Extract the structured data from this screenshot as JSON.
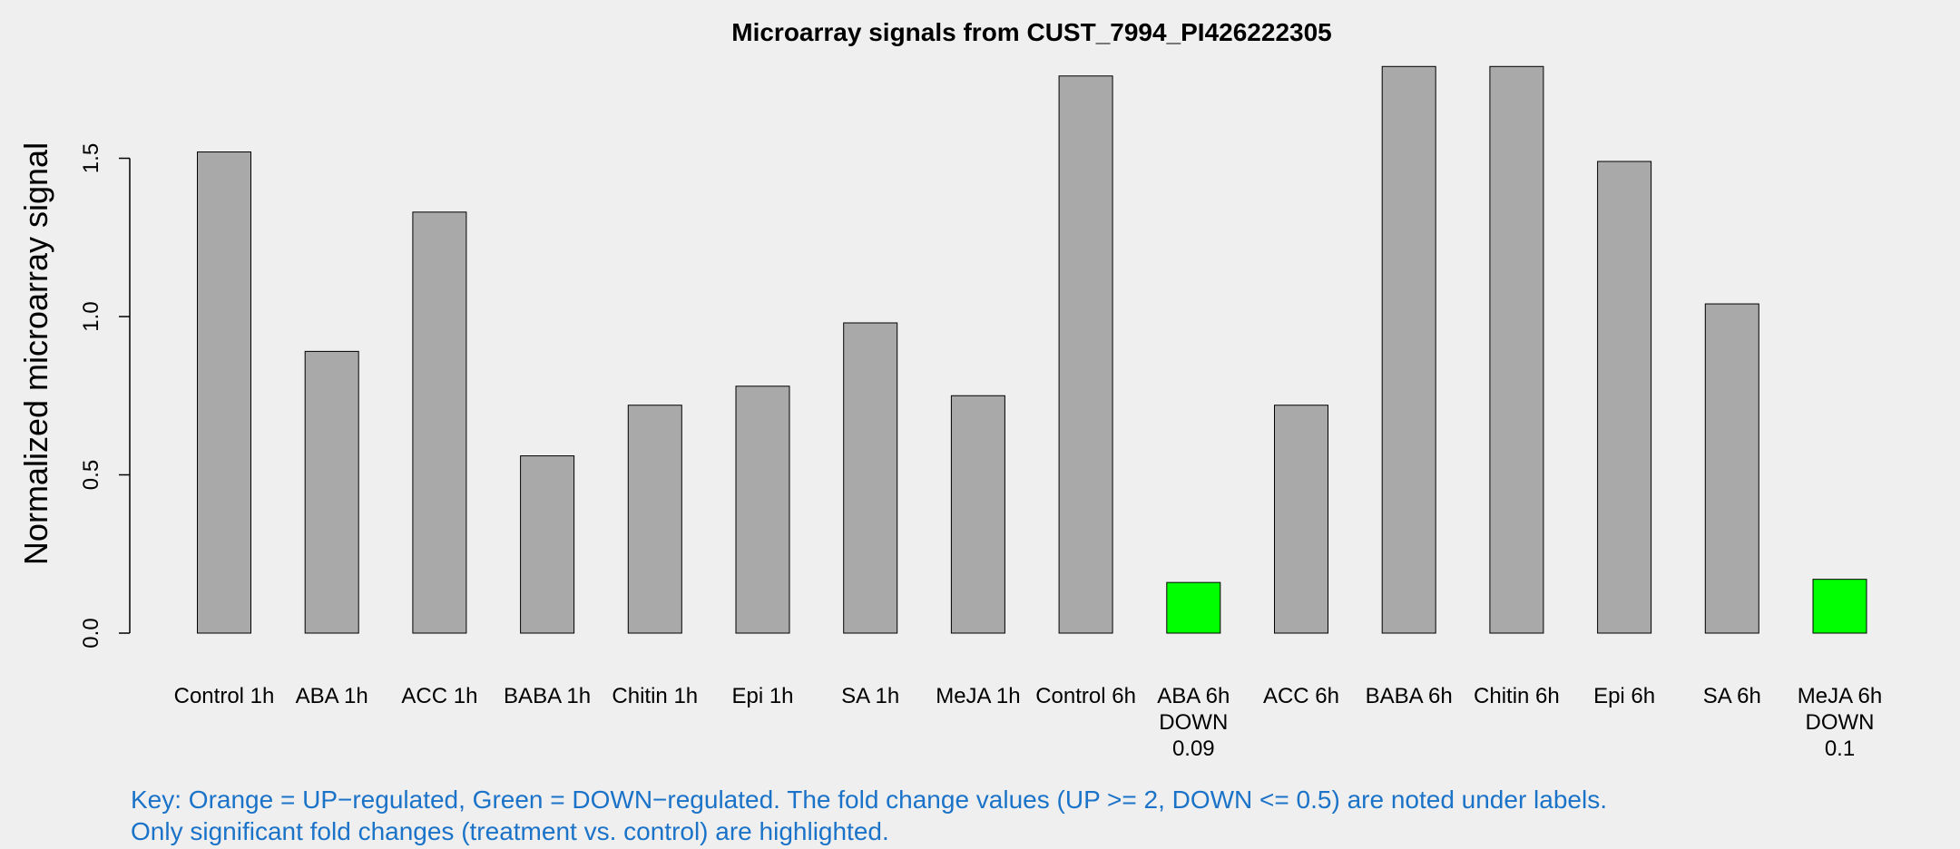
{
  "chart_data": {
    "type": "bar",
    "title": "Microarray signals from CUST_7994_PI426222305",
    "ylabel": "Normalized microarray signal",
    "xlabel": "",
    "ylim": [
      0,
      1.8
    ],
    "yticks": [
      "0.0",
      "0.5",
      "1.0",
      "1.5"
    ],
    "ytick_values": [
      0,
      0.5,
      1.0,
      1.5
    ],
    "grid": false,
    "categories": [
      "Control 1h",
      "ABA 1h",
      "ACC 1h",
      "BABA 1h",
      "Chitin 1h",
      "Epi 1h",
      "SA 1h",
      "MeJA 1h",
      "Control 6h",
      "ABA 6h",
      "ACC 6h",
      "BABA 6h",
      "Chitin 6h",
      "Epi 6h",
      "SA 6h",
      "MeJA 6h"
    ],
    "values": [
      1.52,
      0.89,
      1.33,
      0.56,
      0.72,
      0.78,
      0.98,
      0.75,
      1.76,
      0.16,
      0.72,
      1.79,
      1.79,
      1.49,
      1.04,
      0.17
    ],
    "annotations": [
      {
        "category": "ABA 6h",
        "direction": "DOWN",
        "fold_change": "0.09"
      },
      {
        "category": "MeJA 6h",
        "direction": "DOWN",
        "fold_change": "0.1"
      }
    ],
    "colors": {
      "default_bar": "#a9a9a9",
      "down": "#00ff00",
      "up": "#ffa500",
      "key_text": "#1a73c8"
    }
  },
  "key": {
    "line1": "Key: Orange = UP−regulated, Green = DOWN−regulated. The fold change values (UP >= 2, DOWN <= 0.5) are noted under labels.",
    "line2": "Only significant fold changes (treatment vs. control) are highlighted."
  }
}
